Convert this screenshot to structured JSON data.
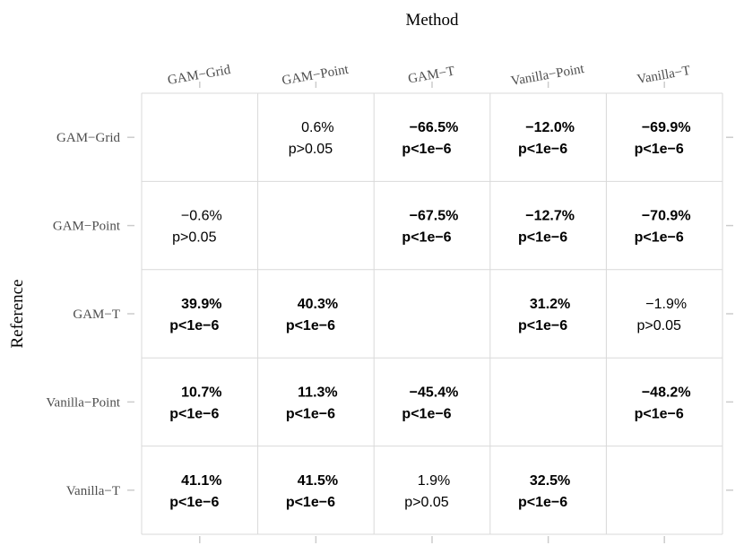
{
  "chart_data": {
    "type": "table",
    "title": "",
    "xlabel": "Method",
    "ylabel": "Reference",
    "columns": [
      "GAM−Grid",
      "GAM−Point",
      "GAM−T",
      "Vanilla−Point",
      "Vanilla−T"
    ],
    "rows": [
      "GAM−Grid",
      "GAM−Point",
      "GAM−T",
      "Vanilla−Point",
      "Vanilla−T"
    ],
    "cells": [
      [
        null,
        {
          "pct": "0.6%",
          "p": "p>0.05",
          "bold": false
        },
        {
          "pct": "−66.5%",
          "p": "p<1e−6",
          "bold": true
        },
        {
          "pct": "−12.0%",
          "p": "p<1e−6",
          "bold": true
        },
        {
          "pct": "−69.9%",
          "p": "p<1e−6",
          "bold": true
        }
      ],
      [
        {
          "pct": "−0.6%",
          "p": "p>0.05",
          "bold": false
        },
        null,
        {
          "pct": "−67.5%",
          "p": "p<1e−6",
          "bold": true
        },
        {
          "pct": "−12.7%",
          "p": "p<1e−6",
          "bold": true
        },
        {
          "pct": "−70.9%",
          "p": "p<1e−6",
          "bold": true
        }
      ],
      [
        {
          "pct": "39.9%",
          "p": "p<1e−6",
          "bold": true
        },
        {
          "pct": "40.3%",
          "p": "p<1e−6",
          "bold": true
        },
        null,
        {
          "pct": "31.2%",
          "p": "p<1e−6",
          "bold": true
        },
        {
          "pct": "−1.9%",
          "p": "p>0.05",
          "bold": false
        }
      ],
      [
        {
          "pct": "10.7%",
          "p": "p<1e−6",
          "bold": true
        },
        {
          "pct": "11.3%",
          "p": "p<1e−6",
          "bold": true
        },
        {
          "pct": "−45.4%",
          "p": "p<1e−6",
          "bold": true
        },
        null,
        {
          "pct": "−48.2%",
          "p": "p<1e−6",
          "bold": true
        }
      ],
      [
        {
          "pct": "41.1%",
          "p": "p<1e−6",
          "bold": true
        },
        {
          "pct": "41.5%",
          "p": "p<1e−6",
          "bold": true
        },
        {
          "pct": "1.9%",
          "p": "p>0.05",
          "bold": false
        },
        {
          "pct": "32.5%",
          "p": "p<1e−6",
          "bold": true
        },
        null
      ]
    ]
  },
  "colors": {
    "grid": "#d9d9d9",
    "tick": "#cccccc",
    "axis_text": "#4d4d4d",
    "cell_text": "#000000",
    "title_text": "#000000"
  }
}
